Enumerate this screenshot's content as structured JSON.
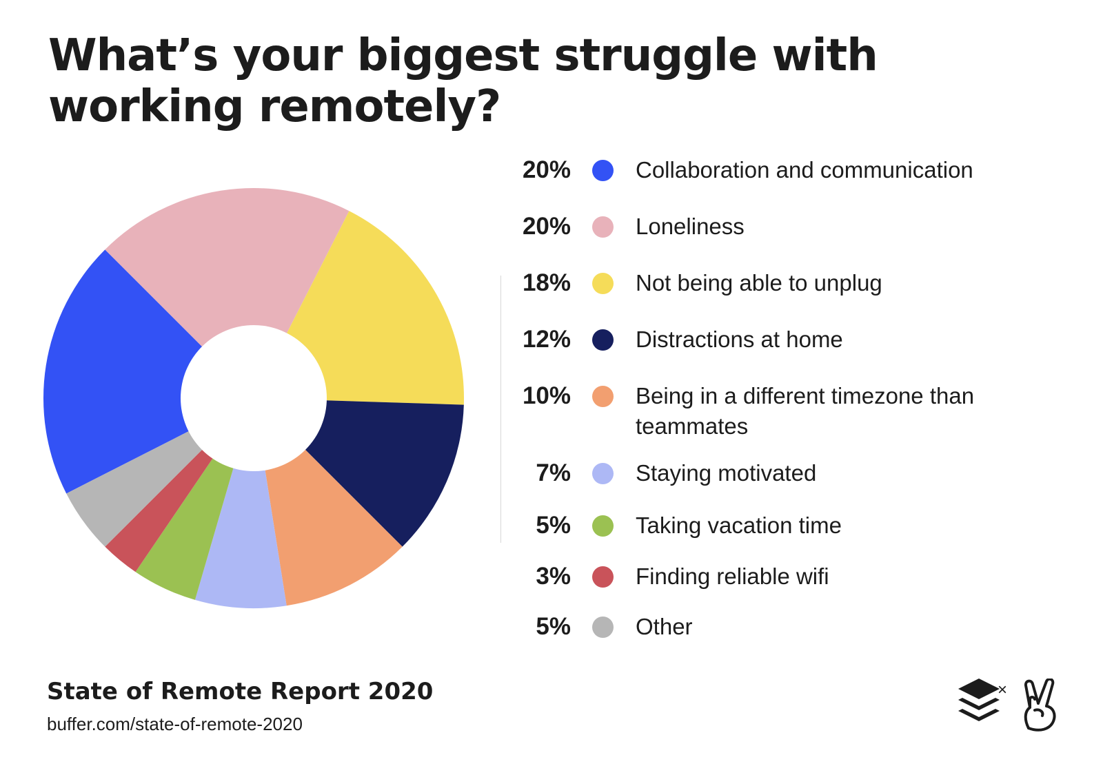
{
  "title": "What’s your biggest struggle with working remotely?",
  "footer": {
    "report_title": "State of Remote Report 2020",
    "url": "buffer.com/state-of-remote-2020",
    "separator": "×"
  },
  "chart_data": {
    "type": "pie",
    "donut": true,
    "title": "What’s your biggest struggle with working remotely?",
    "slices": [
      {
        "label": "Collaboration and communication",
        "value": 20,
        "pct_label": "20%",
        "color": "#3352f5"
      },
      {
        "label": "Loneliness",
        "value": 20,
        "pct_label": "20%",
        "color": "#e8b2ba"
      },
      {
        "label": "Not being able to unplug",
        "value": 18,
        "pct_label": "18%",
        "color": "#f5dc59"
      },
      {
        "label": "Distractions at home",
        "value": 12,
        "pct_label": "12%",
        "color": "#161f5e"
      },
      {
        "label": "Being in a different timezone than teammates",
        "value": 10,
        "pct_label": "10%",
        "color": "#f29f70"
      },
      {
        "label": "Staying motivated",
        "value": 7,
        "pct_label": "7%",
        "color": "#adb8f5"
      },
      {
        "label": "Taking vacation time",
        "value": 5,
        "pct_label": "5%",
        "color": "#9bc152"
      },
      {
        "label": "Finding reliable wifi",
        "value": 3,
        "pct_label": "3%",
        "color": "#c9535a"
      },
      {
        "label": "Other",
        "value": 5,
        "pct_label": "5%",
        "color": "#b6b6b6"
      }
    ],
    "legend_position": "right"
  },
  "logos": {
    "left_icon": "stacked-layers-logo-icon",
    "right_icon": "peace-hand-logo-icon"
  }
}
